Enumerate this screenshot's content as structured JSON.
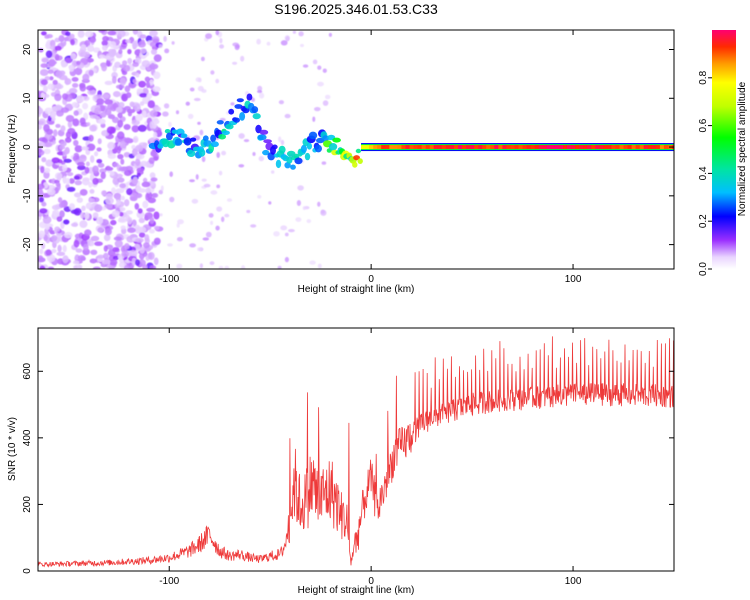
{
  "title": "S196.2025.346.01.53.C33",
  "colors": {
    "snr_line": "#ee3a3a",
    "background": "#ffffff",
    "spectrogram_base": "#8a2be2"
  },
  "chart_data": [
    {
      "type": "heatmap",
      "name": "spectrogram",
      "xlabel": "Height of straight line (km)",
      "ylabel": "Frequency (Hz)",
      "xlim": [
        -165,
        150
      ],
      "ylim": [
        -25,
        24
      ],
      "xticks": [
        -100,
        0,
        100
      ],
      "xtick_labels": [
        "-100",
        "0",
        "100"
      ],
      "yticks": [
        -20,
        -10,
        0,
        10,
        20
      ],
      "ytick_labels": [
        "-20",
        "-10",
        "0",
        "10",
        "20"
      ],
      "colorbar": {
        "label": "Normalized spectral amplitude",
        "range": [
          0,
          1
        ],
        "ticks": [
          0,
          0.2,
          0.4,
          0.6,
          0.8
        ],
        "tick_labels": [
          "0.0",
          "0.2",
          "0.4",
          "0.6",
          "0.8"
        ]
      },
      "ridge": {
        "description": "Dominant frequency ridge in data units (km, Hz, normalized amplitude)",
        "x": [
          -108,
          -100,
          -92,
          -85,
          -80,
          -75,
          -70,
          -65,
          -60,
          -55,
          -50,
          -45,
          -40,
          -35,
          -30,
          -25,
          -20,
          -15,
          -10,
          -5,
          0,
          5,
          10,
          20,
          40,
          60,
          80,
          100,
          120,
          150
        ],
        "y": [
          1,
          2,
          1,
          0,
          1,
          3,
          5,
          8,
          9,
          3,
          -1,
          -2,
          -3,
          -2,
          0,
          2,
          1,
          0,
          -2,
          -1,
          -1,
          0,
          0,
          0,
          0,
          0,
          0,
          0,
          0,
          0
        ],
        "amplitude": [
          0.22,
          0.3,
          0.28,
          0.25,
          0.3,
          0.35,
          0.3,
          0.28,
          0.3,
          0.25,
          0.22,
          0.28,
          0.3,
          0.32,
          0.3,
          0.28,
          0.5,
          0.55,
          0.6,
          0.75,
          0.85,
          0.95,
          0.9,
          0.92,
          0.95,
          0.93,
          0.95,
          0.97,
          0.94,
          0.9
        ]
      }
    },
    {
      "type": "line",
      "name": "snr",
      "xlabel": "Height of straight line (km)",
      "ylabel": "SNR (10 * v/v)",
      "xlim": [
        -165,
        150
      ],
      "ylim": [
        0,
        730
      ],
      "xticks": [
        -100,
        0,
        100
      ],
      "xtick_labels": [
        "-100",
        "0",
        "100"
      ],
      "yticks": [
        0,
        200,
        400,
        600
      ],
      "ytick_labels": [
        "0",
        "200",
        "400",
        "600"
      ],
      "series": [
        {
          "name": "SNR",
          "color": "#ee3a3a",
          "x": [
            -165,
            -150,
            -130,
            -110,
            -100,
            -90,
            -85,
            -80,
            -75,
            -70,
            -65,
            -60,
            -55,
            -50,
            -45,
            -41,
            -38,
            -35,
            -32,
            -29,
            -26,
            -23,
            -20,
            -18,
            -15,
            -12,
            -10,
            -7,
            -3,
            0,
            3,
            6,
            9,
            12,
            16,
            20,
            25,
            30,
            40,
            50,
            60,
            80,
            100,
            120,
            150
          ],
          "y": [
            20,
            22,
            25,
            32,
            40,
            60,
            80,
            110,
            60,
            45,
            50,
            40,
            35,
            45,
            50,
            100,
            220,
            160,
            180,
            220,
            170,
            190,
            200,
            180,
            140,
            120,
            20,
            100,
            220,
            280,
            180,
            240,
            300,
            360,
            380,
            410,
            440,
            460,
            480,
            500,
            510,
            520,
            530,
            530,
            525
          ]
        }
      ]
    }
  ]
}
